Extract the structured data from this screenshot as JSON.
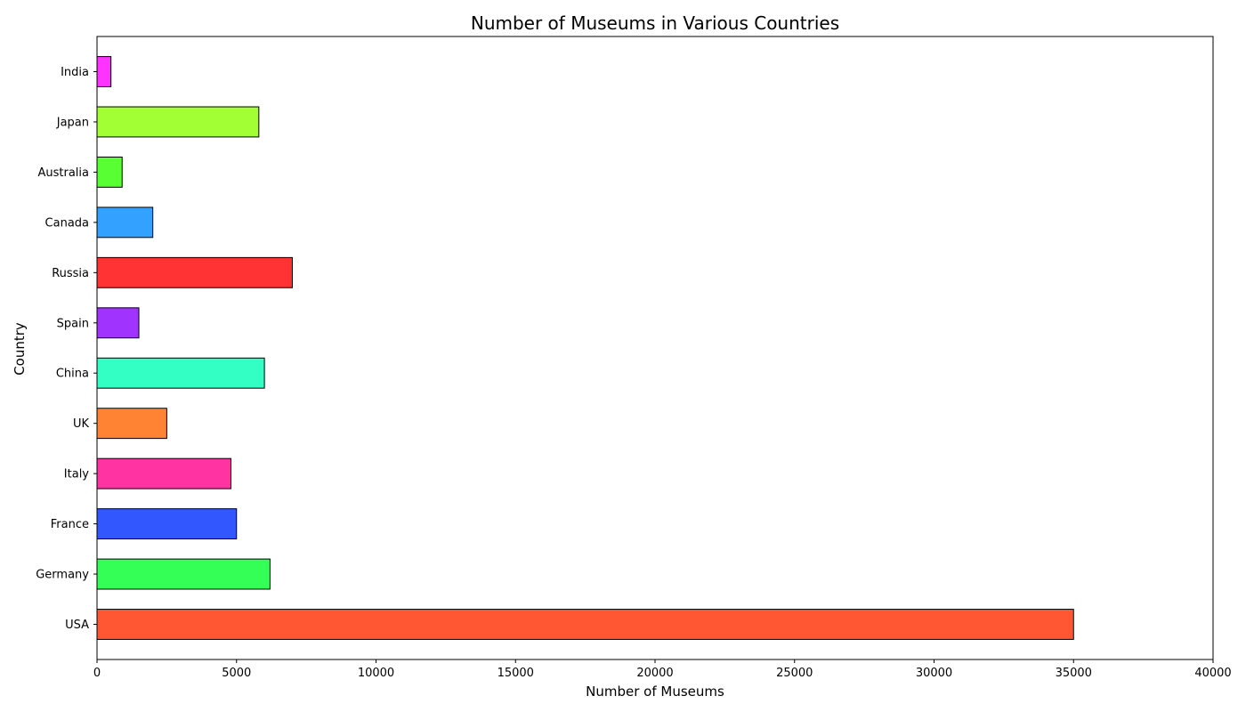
{
  "chart_data": {
    "type": "bar",
    "orientation": "horizontal",
    "title": "Number of Museums in Various Countries",
    "xlabel": "Number of Museums",
    "ylabel": "Country",
    "categories": [
      "USA",
      "Germany",
      "France",
      "Italy",
      "UK",
      "China",
      "Spain",
      "Russia",
      "Canada",
      "Australia",
      "Japan",
      "India"
    ],
    "values": [
      35000,
      6200,
      5000,
      4800,
      2500,
      6000,
      1500,
      7000,
      2000,
      900,
      5800,
      500
    ],
    "colors": [
      "#FF5733",
      "#33FF57",
      "#3357FF",
      "#FF33A1",
      "#FF8333",
      "#33FFC4",
      "#A133FF",
      "#FF3333",
      "#33A1FF",
      "#57FF33",
      "#A1FF33",
      "#FF33FF"
    ],
    "xlim": [
      0,
      40000
    ],
    "xticks": [
      0,
      5000,
      10000,
      15000,
      20000,
      25000,
      30000,
      35000,
      40000
    ],
    "grid": false,
    "legend": "none",
    "edge_color": "#000000"
  }
}
